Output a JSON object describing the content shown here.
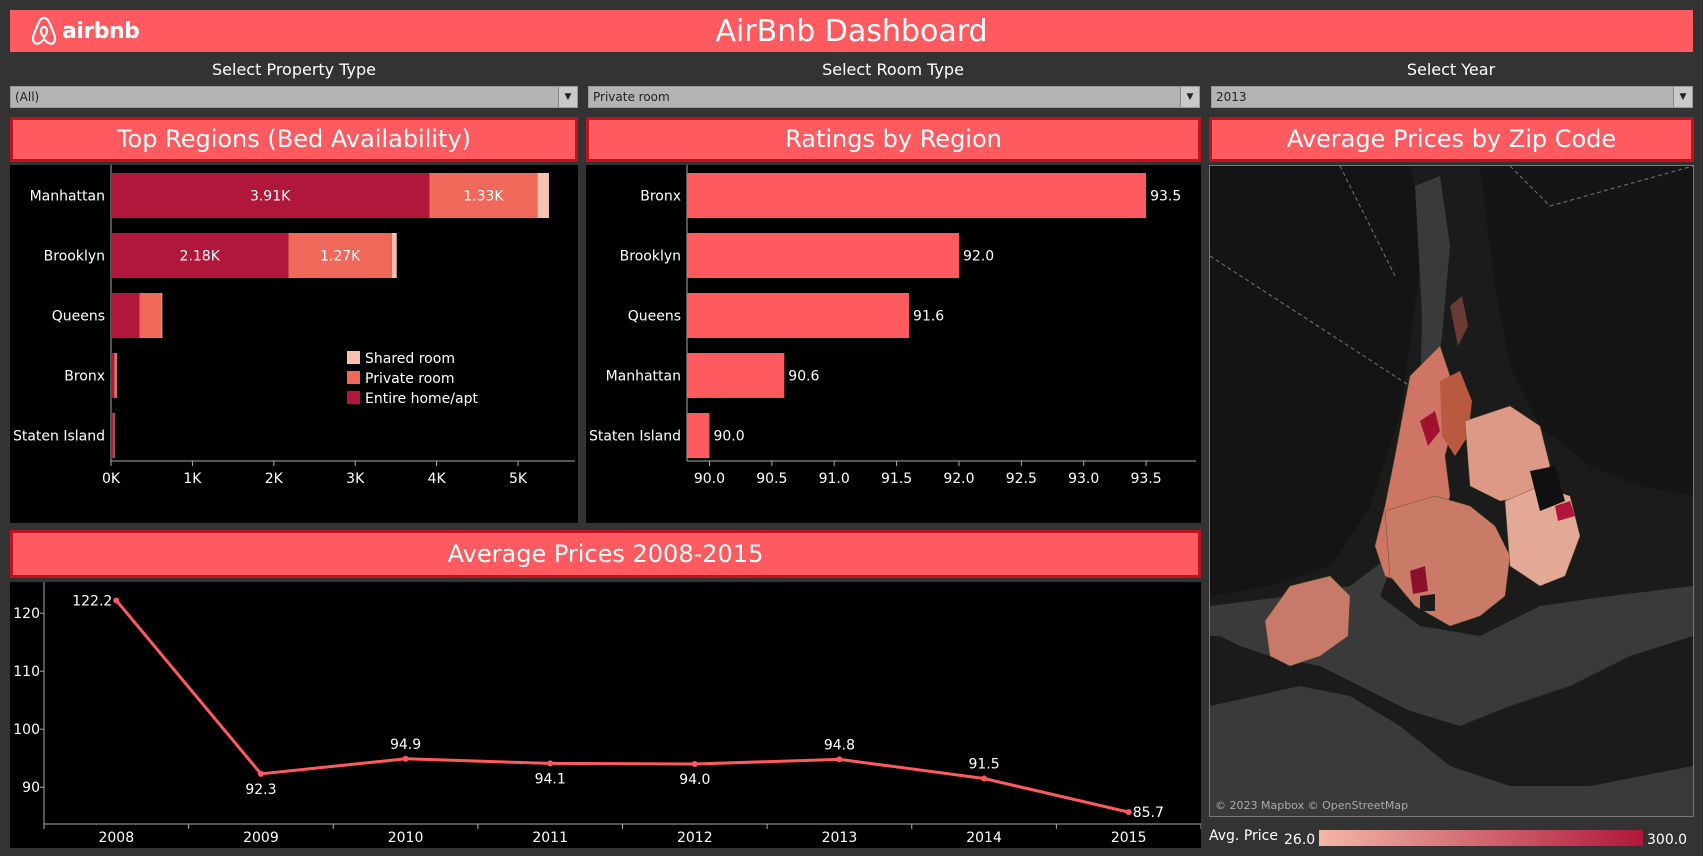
{
  "header": {
    "logo_text": "airbnb",
    "title": "AirBnb Dashboard"
  },
  "filters": [
    {
      "label": "Select Property Type",
      "value": "(All)"
    },
    {
      "label": "Select Room Type",
      "value": "Private room"
    },
    {
      "label": "Select Year",
      "value": "2013"
    }
  ],
  "panels": {
    "regions_title": "Top Regions (Bed Availability)",
    "ratings_title": "Ratings by Region",
    "map_title": "Average Prices by Zip Code",
    "prices_title": "Average Prices 2008-2015"
  },
  "map": {
    "attribution": "© 2023 Mapbox © OpenStreetMap",
    "legend_label": "Avg. Price",
    "legend_min": "26.0",
    "legend_max": "300.0",
    "legend_colors": [
      "#f2b8a6",
      "#b0173a"
    ]
  },
  "colors": {
    "accent": "#ff5a5f",
    "entire": "#b0173a",
    "private": "#f0685a",
    "shared": "#f9c1b1"
  },
  "chart_data": [
    {
      "type": "bar",
      "title": "Top Regions (Bed Availability)",
      "categories": [
        "Manhattan",
        "Brooklyn",
        "Queens",
        "Bronx",
        "Staten Island"
      ],
      "series": [
        {
          "name": "Entire home/apt",
          "values": [
            3910,
            2180,
            350,
            40,
            30
          ],
          "labels": [
            "3.91K",
            "2.18K",
            "",
            "",
            ""
          ]
        },
        {
          "name": "Private room",
          "values": [
            1330,
            1270,
            270,
            30,
            10
          ],
          "labels": [
            "1.33K",
            "1.27K",
            "",
            "",
            ""
          ]
        },
        {
          "name": "Shared room",
          "values": [
            140,
            60,
            10,
            5,
            5
          ],
          "labels": [
            "",
            "",
            "",
            "",
            ""
          ]
        }
      ],
      "xticks": [
        "0K",
        "1K",
        "2K",
        "3K",
        "4K",
        "5K"
      ],
      "xlim": [
        0,
        5700
      ],
      "legend": [
        "Shared room",
        "Private room",
        "Entire home/apt"
      ]
    },
    {
      "type": "bar",
      "title": "Ratings by Region",
      "categories": [
        "Bronx",
        "Brooklyn",
        "Queens",
        "Manhattan",
        "Staten Island"
      ],
      "values": [
        93.5,
        92.0,
        91.6,
        90.6,
        90.0
      ],
      "labels": [
        "93.5",
        "92.0",
        "91.6",
        "90.6",
        "90.0"
      ],
      "xticks": [
        "90.0",
        "90.5",
        "91.0",
        "91.5",
        "92.0",
        "92.5",
        "93.0",
        "93.5"
      ],
      "xlim": [
        89.82,
        93.82
      ]
    },
    {
      "type": "line",
      "title": "Average Prices 2008-2015",
      "x": [
        "2008",
        "2009",
        "2010",
        "2011",
        "2012",
        "2013",
        "2014",
        "2015"
      ],
      "values": [
        122.2,
        92.3,
        94.9,
        94.1,
        94.0,
        94.8,
        91.5,
        85.7
      ],
      "labels": [
        "122.2",
        "92.3",
        "94.9",
        "94.1",
        "94.0",
        "94.8",
        "91.5",
        "85.7"
      ],
      "yticks": [
        "90",
        "100",
        "110",
        "120"
      ],
      "ylim": [
        84,
        124
      ]
    }
  ]
}
